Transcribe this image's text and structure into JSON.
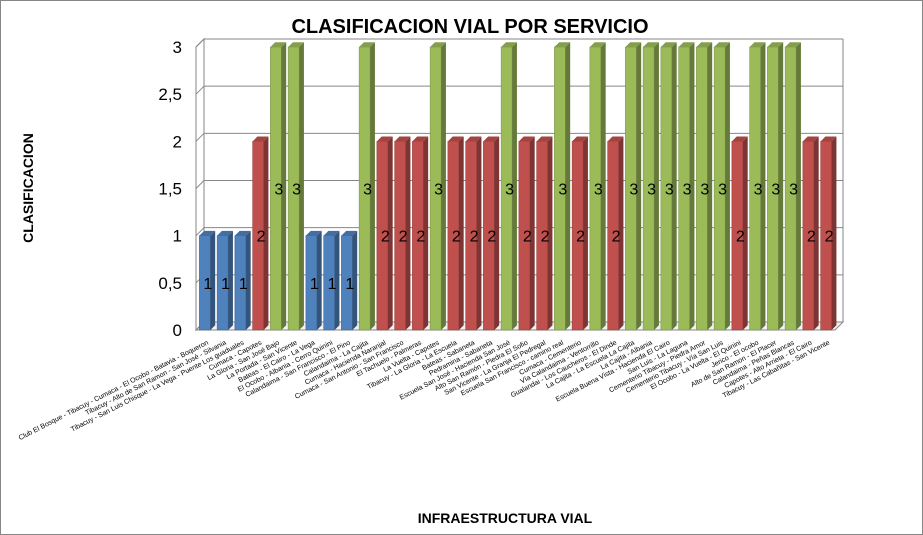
{
  "chart_data": {
    "type": "bar",
    "title": "CLASIFICACION VIAL POR SERVICIO",
    "xlabel": "INFRAESTRUCTURA  VIAL",
    "ylabel": "CLASIFICACION",
    "ylim": [
      0,
      3
    ],
    "yticks": [
      "0",
      "0,5",
      "1",
      "1,5",
      "2",
      "2,5",
      "3"
    ],
    "grid": true,
    "legend": "none",
    "colors": {
      "1": "#4f81bd",
      "2": "#c0504d",
      "3": "#9bbb59"
    },
    "categories": [
      "Club El Bosque - Tibacuy - Cumaca - El Ocobo - Batavia - Boqueron",
      "Tibacuy - Alto de San Ramon - San José - Silvania",
      "Tibacuy - San Luis Chisque - La Vega - Puente Los guaduales",
      "Cumaca - Capotes",
      "La Gloria - San José Bajo",
      "La Portada - San Vicente",
      "Bateas - El Cairo - La Vega",
      "El Ocobo - Albania - Cerro Quinini",
      "Calandaima - San Francisco - El Pino",
      "Calandaima - La Cajita",
      "Cumaca - Hacienda Naranjal",
      "Cumaca - San Antonio - San Francisco",
      "El Tachuelo - Palmeras",
      "La Vuelta - Capotes",
      "Tibacuy - La Gloria - La Escuela",
      "Bateas - Sabaneta",
      "Pedramina - Sabaneta",
      "Escuela San José - Hacienda San José",
      "Alto San Ramón - Piedra El Sofio",
      "San Vicente - La Granja El Pedregal",
      "Escuela San Francisco - camino real",
      "Cumaca - Cementerio",
      "Vía Calandaima - Ventorrillo",
      "Gualandai - Los Caucheros - El Dinde",
      "La Cajita - La Escuela La Cajita",
      "La Cajita - Albania",
      "Escuela Buena Vista - Hacienda El Cairo",
      "San Luis - La Laguna",
      "Cementerio Tibacuy - Piedra Amor",
      "Cementerio Tibacuy - Vía San Luis",
      "El Ocobo - La Vuelta - El Quinini",
      "Jerico - El ocobo",
      "Alto de San Ramon - El Placer",
      "Calandaima - Peñas Blancas",
      "Capotes - Alto Arrieta - El Cairo",
      "Tibacuy - Las Cabañitas - San Vicente"
    ],
    "values": [
      1,
      1,
      1,
      2,
      3,
      3,
      1,
      1,
      1,
      3,
      2,
      2,
      2,
      3,
      2,
      2,
      2,
      3,
      2,
      2,
      3,
      2,
      3,
      2,
      3,
      3,
      3,
      3,
      3,
      3,
      2,
      3,
      3,
      3,
      2,
      2
    ]
  }
}
